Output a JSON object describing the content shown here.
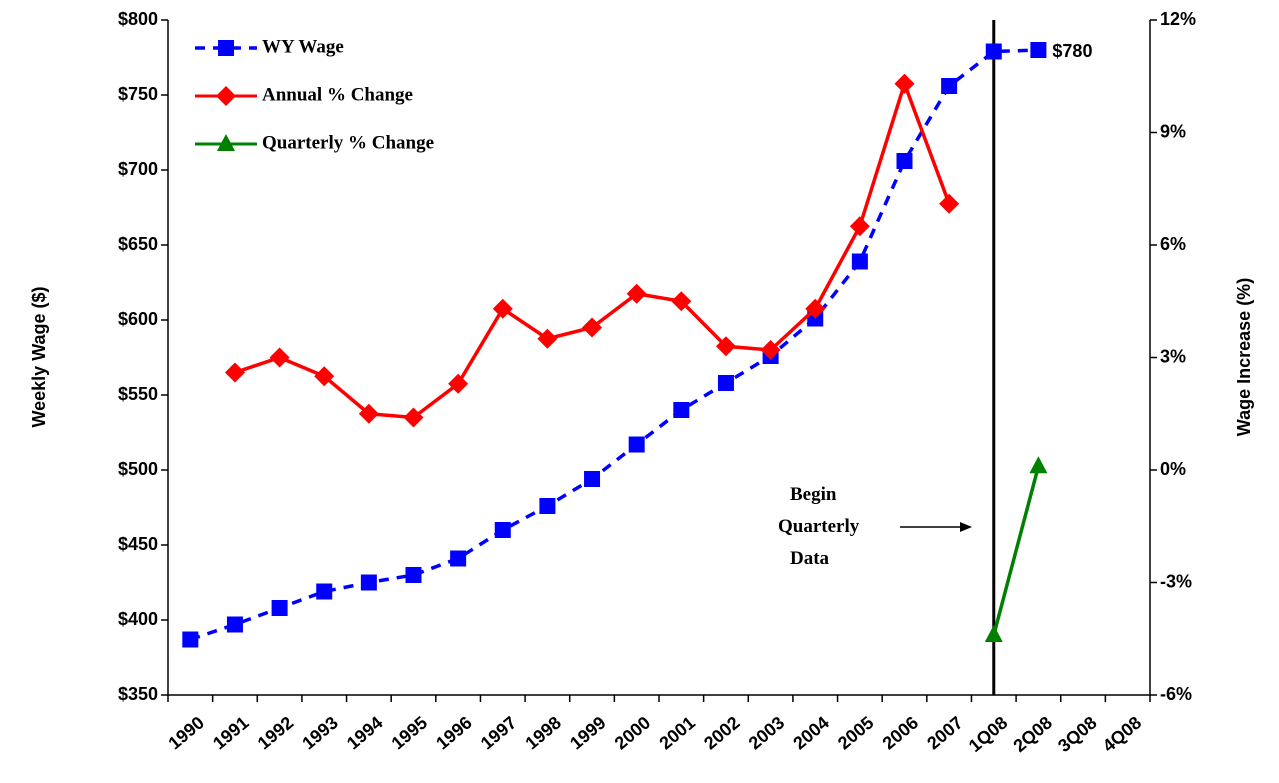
{
  "chart_data": {
    "type": "line",
    "y_label": "Weekly Wage ($)",
    "y2_label": "Wage Increase (%)",
    "categories": [
      "1990",
      "1991",
      "1992",
      "1993",
      "1994",
      "1995",
      "1996",
      "1997",
      "1998",
      "1999",
      "2000",
      "2001",
      "2002",
      "2003",
      "2004",
      "2005",
      "2006",
      "2007",
      "1Q08",
      "2Q08",
      "3Q08",
      "4Q08"
    ],
    "series": [
      {
        "name": "WY Wage",
        "color": "#0000ff",
        "dash": true,
        "marker": "square",
        "values": [
          387,
          397,
          408,
          419,
          425,
          430,
          441,
          460,
          476,
          494,
          517,
          540,
          558,
          576,
          601,
          639,
          706,
          756,
          779,
          780,
          null,
          null
        ],
        "value_labels": [
          null,
          null,
          null,
          null,
          null,
          null,
          null,
          null,
          null,
          null,
          null,
          null,
          null,
          null,
          null,
          null,
          null,
          null,
          null,
          "$780",
          null,
          null
        ]
      },
      {
        "name": "Annual % Change",
        "color": "#ff0000",
        "marker": "diamond",
        "axis": "y2",
        "values": [
          null,
          2.6,
          3.0,
          2.5,
          1.5,
          1.4,
          2.3,
          4.3,
          3.5,
          3.8,
          4.7,
          4.5,
          3.3,
          3.2,
          4.3,
          6.5,
          10.3,
          7.1,
          null,
          null,
          null,
          null
        ]
      },
      {
        "name": "Quarterly % Change",
        "color": "#008000",
        "marker": "triangle",
        "axis": "y2",
        "values": [
          null,
          null,
          null,
          null,
          null,
          null,
          null,
          null,
          null,
          null,
          null,
          null,
          null,
          null,
          null,
          null,
          null,
          null,
          -4.4,
          0.1,
          null,
          null
        ]
      }
    ],
    "annotation": "Begin Quarterly Data",
    "ylim": [
      350,
      800
    ],
    "yticks": [
      {
        "value": 350,
        "label": "$350"
      },
      {
        "value": 400,
        "label": "$400"
      },
      {
        "value": 450,
        "label": "$450"
      },
      {
        "value": 500,
        "label": "$500"
      },
      {
        "value": 550,
        "label": "$550"
      },
      {
        "value": 600,
        "label": "$600"
      },
      {
        "value": 650,
        "label": "$650"
      },
      {
        "value": 700,
        "label": "$700"
      },
      {
        "value": 750,
        "label": "$750"
      },
      {
        "value": 800,
        "label": "$800"
      }
    ],
    "y2lim": [
      -6,
      12
    ],
    "y2ticks": [
      {
        "value": -6,
        "label": "-6%"
      },
      {
        "value": -3,
        "label": "-3%"
      },
      {
        "value": 0,
        "label": "0%"
      },
      {
        "value": 3,
        "label": "3%"
      },
      {
        "value": 6,
        "label": "6%"
      },
      {
        "value": 9,
        "label": "9%"
      },
      {
        "value": 12,
        "label": "12%"
      }
    ],
    "grid": false,
    "legend": "upper left"
  }
}
